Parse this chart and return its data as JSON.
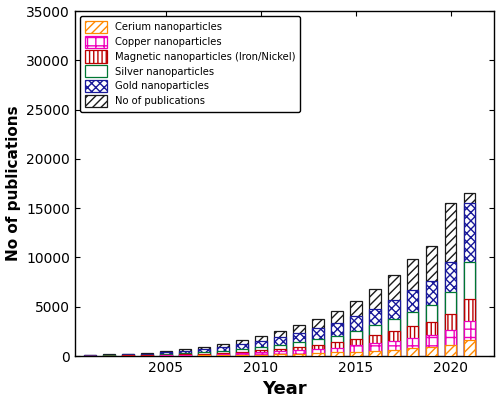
{
  "years": [
    2001,
    2002,
    2003,
    2004,
    2005,
    2006,
    2007,
    2008,
    2009,
    2010,
    2011,
    2012,
    2013,
    2014,
    2015,
    2016,
    2017,
    2018,
    2019,
    2020,
    2021
  ],
  "no_of_publications": [
    150,
    180,
    250,
    350,
    500,
    700,
    950,
    1250,
    1600,
    2000,
    2500,
    3100,
    3800,
    4600,
    5600,
    6800,
    8200,
    9800,
    11200,
    15500,
    16500
  ],
  "gold": [
    80,
    110,
    170,
    240,
    360,
    520,
    700,
    950,
    1200,
    1550,
    1900,
    2350,
    2800,
    3350,
    4050,
    4800,
    5700,
    6700,
    7600,
    9500,
    15500
  ],
  "silver": [
    40,
    60,
    90,
    130,
    190,
    270,
    370,
    510,
    680,
    880,
    1120,
    1400,
    1700,
    2050,
    2550,
    3100,
    3750,
    4500,
    5200,
    6500,
    9500
  ],
  "magnetic": [
    25,
    35,
    55,
    80,
    120,
    175,
    240,
    330,
    450,
    590,
    760,
    950,
    1160,
    1400,
    1750,
    2100,
    2550,
    3000,
    3500,
    4300,
    5800
  ],
  "copper": [
    12,
    18,
    28,
    45,
    68,
    100,
    140,
    195,
    270,
    360,
    460,
    570,
    710,
    860,
    1080,
    1290,
    1560,
    1860,
    2160,
    2650,
    3600
  ],
  "cerium": [
    5,
    8,
    12,
    18,
    27,
    42,
    60,
    83,
    115,
    150,
    195,
    240,
    295,
    360,
    450,
    540,
    650,
    790,
    920,
    1150,
    1600
  ],
  "ylabel": "No of publications",
  "xlabel": "Year",
  "ylim": [
    0,
    35000
  ],
  "yticks": [
    0,
    5000,
    10000,
    15000,
    20000,
    25000,
    30000,
    35000
  ],
  "bar_width": 0.6,
  "color_no_pub": "#1a1a1a",
  "color_gold": "#191999",
  "color_silver": "#007733",
  "color_magnetic": "#bb0000",
  "color_copper": "#ee00bb",
  "color_cerium": "#ff8800"
}
